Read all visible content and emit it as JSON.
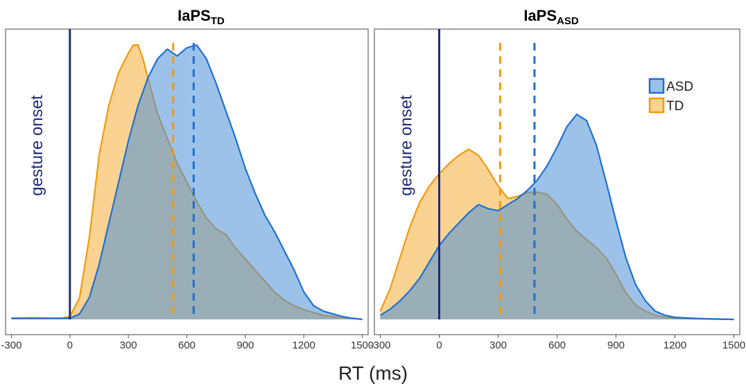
{
  "chart_data": [
    {
      "type": "area",
      "title": "IaPS",
      "title_subscript": "TD",
      "xlabel": "RT (ms)",
      "ylabel": "",
      "xlim": [
        -330,
        1530
      ],
      "xticks": [
        -300,
        0,
        300,
        600,
        900,
        1200,
        1500
      ],
      "grid": false,
      "annotation": {
        "text": "gesture onset",
        "x": 0
      },
      "series": [
        {
          "name": "ASD",
          "color": "#4a90d9",
          "mean": 635,
          "x": [
            -300,
            -200,
            -100,
            -50,
            0,
            50,
            100,
            150,
            200,
            250,
            300,
            350,
            400,
            450,
            500,
            550,
            600,
            650,
            700,
            750,
            800,
            850,
            900,
            950,
            1000,
            1050,
            1100,
            1150,
            1200,
            1250,
            1300,
            1350,
            1400,
            1450,
            1500
          ],
          "y": [
            0.004,
            0.004,
            0.004,
            0.004,
            0.004,
            0.02,
            0.08,
            0.2,
            0.35,
            0.5,
            0.65,
            0.78,
            0.88,
            0.95,
            0.985,
            0.96,
            0.99,
            1.0,
            0.95,
            0.86,
            0.76,
            0.66,
            0.55,
            0.46,
            0.38,
            0.32,
            0.25,
            0.18,
            0.1,
            0.05,
            0.03,
            0.02,
            0.01,
            0.004,
            0.0
          ]
        },
        {
          "name": "TD",
          "color": "#f5a623",
          "mean": 530,
          "x": [
            -300,
            -200,
            -100,
            -50,
            0,
            50,
            100,
            150,
            200,
            250,
            300,
            325,
            350,
            375,
            400,
            450,
            500,
            550,
            600,
            650,
            700,
            750,
            800,
            850,
            900,
            950,
            1000,
            1050,
            1100,
            1150,
            1200,
            1250,
            1300,
            1350,
            1400,
            1450,
            1500
          ],
          "y": [
            0.004,
            0.006,
            0.004,
            0.004,
            0.01,
            0.08,
            0.3,
            0.6,
            0.78,
            0.9,
            0.97,
            1.0,
            1.0,
            0.95,
            0.88,
            0.75,
            0.66,
            0.57,
            0.5,
            0.43,
            0.37,
            0.33,
            0.31,
            0.26,
            0.22,
            0.18,
            0.14,
            0.1,
            0.07,
            0.05,
            0.035,
            0.025,
            0.015,
            0.01,
            0.006,
            0.004,
            0.0
          ]
        }
      ]
    },
    {
      "type": "area",
      "title": "IaPS",
      "title_subscript": "ASD",
      "xlabel": "RT (ms)",
      "ylabel": "",
      "xlim": [
        -330,
        1530
      ],
      "xticks": [
        -300,
        0,
        300,
        600,
        900,
        1200,
        1500
      ],
      "grid": false,
      "annotation": {
        "text": "gesture onset",
        "x": 0
      },
      "legend": {
        "placement": "top-right",
        "entries": [
          "ASD",
          "TD"
        ]
      },
      "series": [
        {
          "name": "ASD",
          "color": "#4a90d9",
          "mean": 485,
          "x": [
            -300,
            -250,
            -200,
            -150,
            -100,
            -50,
            0,
            50,
            100,
            150,
            200,
            250,
            300,
            350,
            400,
            450,
            500,
            550,
            600,
            650,
            700,
            750,
            800,
            850,
            900,
            950,
            1000,
            1050,
            1100,
            1150,
            1200,
            1300,
            1400,
            1500
          ],
          "y": [
            0.02,
            0.05,
            0.09,
            0.14,
            0.2,
            0.28,
            0.36,
            0.42,
            0.47,
            0.52,
            0.56,
            0.54,
            0.53,
            0.56,
            0.59,
            0.63,
            0.68,
            0.75,
            0.84,
            0.94,
            1.0,
            0.97,
            0.85,
            0.67,
            0.48,
            0.3,
            0.17,
            0.09,
            0.04,
            0.02,
            0.01,
            0.005,
            0.002,
            0.0
          ]
        },
        {
          "name": "TD",
          "color": "#f5a623",
          "mean": 310,
          "x": [
            -300,
            -250,
            -200,
            -150,
            -100,
            -50,
            0,
            50,
            100,
            150,
            200,
            250,
            300,
            350,
            400,
            450,
            500,
            550,
            600,
            650,
            700,
            750,
            800,
            850,
            900,
            950,
            1000,
            1050,
            1100,
            1150,
            1200,
            1300,
            1400,
            1500
          ],
          "y": [
            0.04,
            0.15,
            0.3,
            0.45,
            0.57,
            0.65,
            0.71,
            0.76,
            0.8,
            0.83,
            0.8,
            0.73,
            0.65,
            0.59,
            0.6,
            0.62,
            0.62,
            0.61,
            0.56,
            0.49,
            0.43,
            0.39,
            0.35,
            0.3,
            0.22,
            0.13,
            0.07,
            0.04,
            0.02,
            0.01,
            0.005,
            0.003,
            0.001,
            0.0
          ]
        }
      ]
    }
  ]
}
